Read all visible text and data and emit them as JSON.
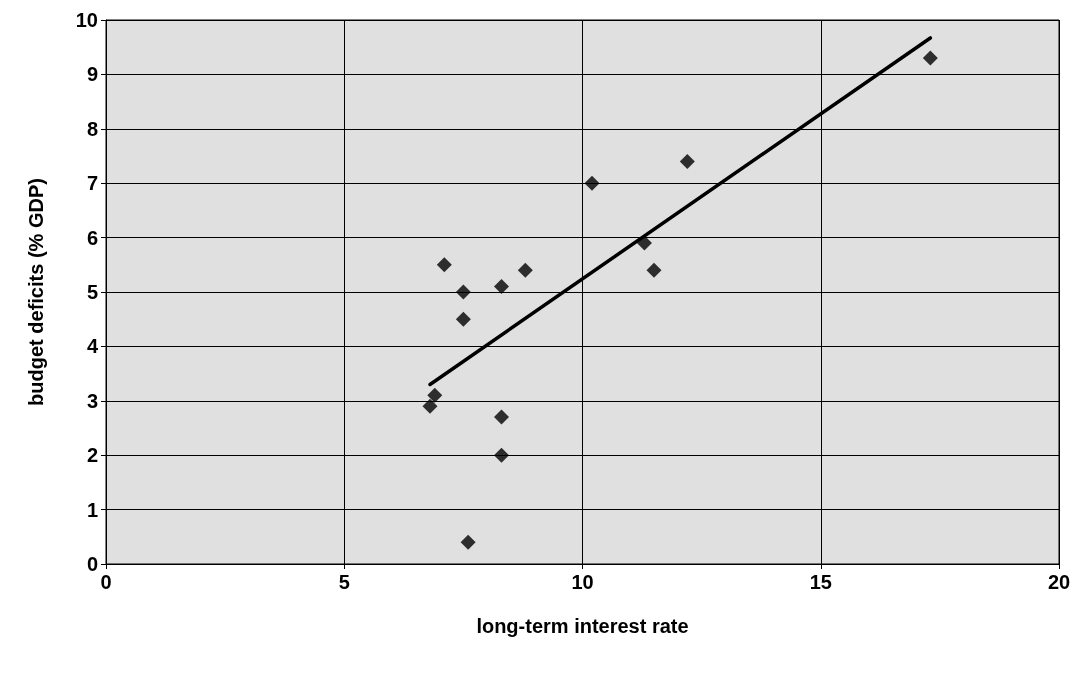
{
  "chart_data": {
    "type": "scatter",
    "xlabel": "long-term interest rate",
    "ylabel": "budget deficits (% GDP)",
    "xlim": [
      0,
      20
    ],
    "xticks": [
      0,
      5,
      10,
      15,
      20
    ],
    "ylim": [
      0,
      10
    ],
    "yticks": [
      0,
      1,
      2,
      3,
      4,
      5,
      6,
      7,
      8,
      9,
      10
    ],
    "grid": true,
    "marker": "diamond",
    "series": [
      {
        "color": "#000000",
        "x": [
          17.3,
          12.2,
          10.2,
          11.3,
          11.5,
          8.8,
          8.3,
          7.1,
          7.5,
          7.5,
          6.9,
          6.8,
          8.3,
          8.3,
          7.6
        ],
        "values": [
          9.3,
          7.4,
          7.0,
          5.9,
          5.4,
          5.4,
          5.1,
          5.5,
          5.0,
          4.5,
          3.1,
          2.9,
          2.7,
          2.0,
          0.4
        ]
      },
      {
        "type": "line",
        "color": "#000000",
        "marker": "none",
        "line_style": "solid",
        "x": [
          6.8,
          17.3
        ],
        "values": [
          3.3,
          9.67
        ]
      }
    ]
  }
}
